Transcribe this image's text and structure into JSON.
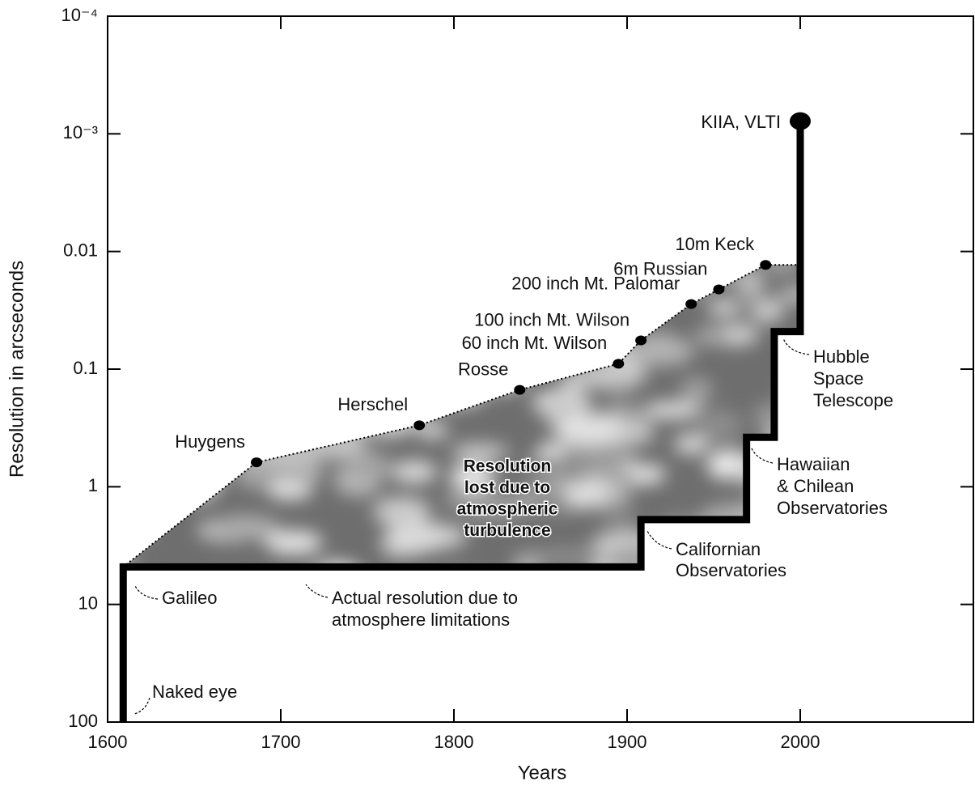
{
  "chart_data": {
    "type": "line",
    "xlabel": "Years",
    "ylabel": "Resolution in arcseconds",
    "xlim": [
      1600,
      2100
    ],
    "xticks": [
      1600,
      1700,
      1800,
      1900,
      2000
    ],
    "ylim": [
      0.0001,
      100
    ],
    "yticks": [
      {
        "value": 0.0001,
        "label": "10⁻⁴"
      },
      {
        "value": 0.001,
        "label": "10⁻³"
      },
      0.01,
      0.1,
      1,
      10,
      100
    ],
    "log_y": true,
    "y_inverted": true,
    "series": [
      {
        "color": "#000000",
        "style": "dotted",
        "x": [
          1609,
          1686,
          1780,
          1838,
          1895,
          1908,
          1937,
          1953,
          1980,
          1998
        ],
        "values": [
          4.8,
          0.62,
          0.3,
          0.15,
          0.09,
          0.057,
          0.028,
          0.021,
          0.013,
          0.013
        ],
        "point_labels": [
          null,
          "Huygens",
          "Herschel",
          "Rosse",
          "60 inch Mt. Wilson",
          "100 inch Mt. Wilson",
          "200 inch Mt. Palomar",
          "6m Russian",
          "10m Keck",
          null
        ]
      },
      {
        "color": "#000000",
        "style": "thick",
        "x": [
          1609,
          1609,
          1908,
          1908,
          1969,
          1969,
          1985,
          1985,
          2000,
          2000
        ],
        "values": [
          100,
          4.8,
          4.8,
          1.9,
          1.9,
          0.38,
          0.38,
          0.048,
          0.048,
          0.00078
        ]
      }
    ],
    "annotations": [
      {
        "text": [
          "KIIA, VLTI"
        ]
      },
      {
        "text": [
          "Hubble",
          "Space",
          "Telescope"
        ]
      },
      {
        "text": [
          "Hawaiian",
          "& Chilean",
          "Observatories"
        ]
      },
      {
        "text": [
          "Californian",
          "Observatories"
        ]
      },
      {
        "text": [
          "Galileo"
        ]
      },
      {
        "text": [
          "Actual resolution due to",
          "atmosphere limitations"
        ]
      },
      {
        "text": [
          "Naked eye"
        ]
      },
      {
        "text": [
          "Resolution",
          "lost due to",
          "atmospheric",
          "turbulence"
        ]
      }
    ]
  }
}
